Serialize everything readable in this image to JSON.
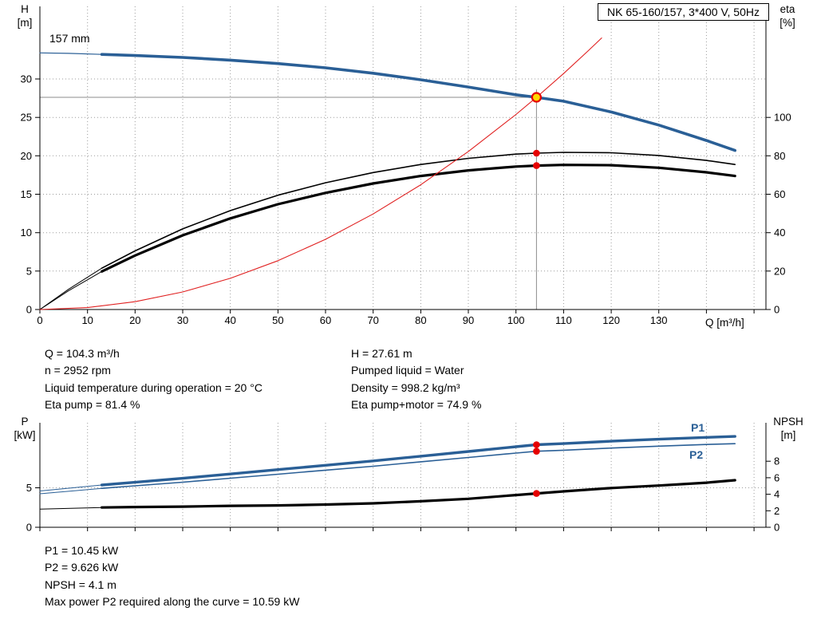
{
  "header": {
    "pump_model": "NK 65-160/157, 3*400 V, 50Hz"
  },
  "colors": {
    "curve_blue": "#2a5f96",
    "curve_black": "#000000",
    "system_red": "#e02020",
    "marker_red": "#e60000",
    "duty_yellow": "#ffd800",
    "crosshair_gray": "#8c8c8c"
  },
  "top_chart": {
    "impeller_label": "157 mm",
    "y_left_title": "H",
    "y_left_unit": "[m]",
    "y_right_title": "eta",
    "y_right_unit": "[%]",
    "x_title": "Q [m³/h]"
  },
  "bottom_chart": {
    "y_left_title": "P",
    "y_left_unit": "[kW]",
    "y_right_title": "NPSH",
    "y_right_unit": "[m]",
    "p1_label": "P1",
    "p2_label": "P2"
  },
  "info": {
    "left_lines": [
      "Q = 104.3 m³/h",
      "n = 2952 rpm",
      "Liquid temperature during operation = 20 °C",
      "Eta pump = 81.4 %"
    ],
    "right_lines": [
      "H = 27.61 m",
      "Pumped liquid = Water",
      "Density = 998.2 kg/m³",
      "Eta pump+motor = 74.9 %"
    ]
  },
  "results": {
    "lines": [
      "P1 = 10.45 kW",
      "P2 = 9.626 kW",
      "NPSH = 4.1 m",
      "Max power P2 required along the curve = 10.59 kW"
    ]
  },
  "chart_data": [
    {
      "id": "hq-eta-chart",
      "type": "line",
      "title": "NK 65-160/157, 3*400 V, 50Hz",
      "xlabel": "Q [m³/h]",
      "ylabel_left": "H [m]",
      "ylabel_right": "eta [%]",
      "x_range": [
        0,
        152.5
      ],
      "x_tick_labels": [
        0,
        10,
        20,
        30,
        40,
        50,
        60,
        70,
        80,
        90,
        100,
        110,
        120,
        130
      ],
      "x_grid": [
        10,
        20,
        30,
        40,
        50,
        60,
        70,
        80,
        90,
        100,
        110,
        120,
        130,
        140,
        150
      ],
      "y_left": {
        "axis": "H",
        "range": [
          0,
          39.4
        ],
        "ticks": [
          0,
          5,
          10,
          15,
          20,
          25,
          30
        ]
      },
      "y_right": {
        "axis": "eta",
        "range": [
          0,
          157
        ],
        "ticks": [
          0,
          20,
          40,
          60,
          80,
          100
        ]
      },
      "y_grid": [
        {
          "axis": "H",
          "v": 5
        },
        {
          "axis": "H",
          "v": 10
        },
        {
          "axis": "H",
          "v": 15
        },
        {
          "axis": "H",
          "v": 20
        },
        {
          "axis": "H",
          "v": 25
        },
        {
          "axis": "H",
          "v": 30
        }
      ],
      "series": [
        {
          "name": "eta-pump-lead",
          "axis": "eta",
          "color": "#000000",
          "width": 1,
          "x": [
            0,
            6,
            13
          ],
          "y": [
            0,
            10.5,
            21.5
          ]
        },
        {
          "name": "eta-pump-curve",
          "axis": "eta",
          "color": "#000000",
          "width": 1.6,
          "x": [
            13,
            20,
            30,
            40,
            50,
            60,
            70,
            80,
            90,
            100,
            104.3,
            110,
            120,
            130,
            140,
            146
          ],
          "y": [
            21.5,
            30.5,
            42,
            51.5,
            59.5,
            66,
            71.3,
            75.5,
            78.7,
            80.9,
            81.4,
            81.8,
            81.6,
            80.2,
            77.6,
            75.5
          ]
        },
        {
          "name": "eta-pump-motor-lead",
          "axis": "eta",
          "color": "#000000",
          "width": 1,
          "x": [
            0,
            6,
            13
          ],
          "y": [
            0,
            9.7,
            19.8
          ]
        },
        {
          "name": "eta-pump-motor-curve",
          "axis": "eta",
          "color": "#000000",
          "width": 3.2,
          "x": [
            13,
            20,
            30,
            40,
            50,
            60,
            70,
            80,
            90,
            100,
            104.3,
            110,
            120,
            130,
            140,
            146
          ],
          "y": [
            19.8,
            28.1,
            38.6,
            47.4,
            54.8,
            60.7,
            65.6,
            69.5,
            72.4,
            74.4,
            74.9,
            75.3,
            75.1,
            73.8,
            71.4,
            69.5
          ]
        },
        {
          "name": "pump-head-lead",
          "axis": "H",
          "color": "#2a5f96",
          "width": 1.2,
          "x": [
            0,
            6,
            13
          ],
          "y": [
            33.4,
            33.33,
            33.2
          ]
        },
        {
          "name": "pump-head-curve-157mm",
          "axis": "H",
          "color": "#2a5f96",
          "width": 3.6,
          "x": [
            13,
            20,
            30,
            40,
            50,
            60,
            70,
            80,
            90,
            100,
            104.3,
            110,
            120,
            130,
            140,
            146
          ],
          "y": [
            33.2,
            33.05,
            32.8,
            32.45,
            32.0,
            31.45,
            30.75,
            29.9,
            28.95,
            27.95,
            27.61,
            27.1,
            25.7,
            24.0,
            22.0,
            20.7
          ]
        },
        {
          "name": "system-curve",
          "axis": "H",
          "color": "#e02020",
          "width": 1.1,
          "x": [
            0,
            10,
            20,
            30,
            40,
            50,
            60,
            70,
            80,
            90,
            100,
            104.3,
            110,
            115,
            118
          ],
          "y": [
            0,
            0.25,
            1.02,
            2.28,
            4.06,
            6.35,
            9.14,
            12.44,
            16.24,
            20.56,
            25.38,
            27.61,
            30.71,
            33.57,
            35.34
          ]
        }
      ],
      "crosshair": {
        "q": 104.3,
        "v": 27.61,
        "axis": "H"
      },
      "markers": [
        {
          "name": "eta-pump-point",
          "q": 104.3,
          "v": 81.4,
          "axis": "eta",
          "style": "red-dot"
        },
        {
          "name": "eta-pump-motor-point",
          "q": 104.3,
          "v": 74.9,
          "axis": "eta",
          "style": "red-dot"
        },
        {
          "name": "duty-point",
          "q": 104.3,
          "v": 27.61,
          "axis": "H",
          "style": "duty"
        }
      ]
    },
    {
      "id": "power-npsh-chart",
      "type": "line",
      "xlabel": "Q [m³/h]",
      "ylabel_left": "P [kW]",
      "ylabel_right": "NPSH [m]",
      "x_range": [
        0,
        152.5
      ],
      "x_tick_labels": [],
      "x_grid": [
        10,
        20,
        30,
        40,
        50,
        60,
        70,
        80,
        90,
        100,
        110,
        120,
        130,
        140,
        150
      ],
      "y_left": {
        "axis": "P",
        "range": [
          0,
          13.2
        ],
        "ticks": [
          0,
          5
        ]
      },
      "y_right": {
        "axis": "NPSH",
        "range": [
          0,
          12.6
        ],
        "ticks": [
          0,
          2,
          4,
          6,
          8
        ]
      },
      "y_grid": [
        {
          "axis": "P",
          "v": 5
        }
      ],
      "series": [
        {
          "name": "p1-lead",
          "axis": "P",
          "color": "#2a5f96",
          "width": 1,
          "x": [
            0,
            13
          ],
          "y": [
            4.6,
            5.35
          ]
        },
        {
          "name": "p1-curve",
          "axis": "P",
          "color": "#2a5f96",
          "width": 3.4,
          "x": [
            13,
            20,
            30,
            40,
            50,
            60,
            70,
            80,
            90,
            100,
            104.3,
            110,
            120,
            130,
            140,
            146
          ],
          "y": [
            5.35,
            5.7,
            6.2,
            6.75,
            7.3,
            7.85,
            8.4,
            9.0,
            9.6,
            10.2,
            10.45,
            10.6,
            10.9,
            11.15,
            11.38,
            11.5
          ]
        },
        {
          "name": "p2-lead",
          "axis": "P",
          "color": "#2a5f96",
          "width": 1,
          "x": [
            0,
            13
          ],
          "y": [
            4.24,
            4.93
          ]
        },
        {
          "name": "p2-curve",
          "axis": "P",
          "color": "#2a5f96",
          "width": 1.6,
          "x": [
            13,
            20,
            30,
            40,
            50,
            60,
            70,
            80,
            90,
            100,
            104.3,
            110,
            120,
            130,
            140,
            146
          ],
          "y": [
            4.93,
            5.25,
            5.71,
            6.21,
            6.72,
            7.23,
            7.73,
            8.29,
            8.84,
            9.39,
            9.626,
            9.76,
            10.03,
            10.27,
            10.48,
            10.59
          ]
        },
        {
          "name": "npsh-lead",
          "axis": "NPSH",
          "color": "#000000",
          "width": 1,
          "x": [
            0,
            13
          ],
          "y": [
            2.2,
            2.4
          ]
        },
        {
          "name": "npsh-curve",
          "axis": "NPSH",
          "color": "#000000",
          "width": 3.2,
          "x": [
            13,
            20,
            30,
            40,
            50,
            60,
            70,
            80,
            90,
            100,
            104.3,
            110,
            120,
            130,
            140,
            146
          ],
          "y": [
            2.4,
            2.45,
            2.5,
            2.6,
            2.65,
            2.75,
            2.9,
            3.15,
            3.45,
            3.9,
            4.1,
            4.35,
            4.75,
            5.05,
            5.4,
            5.7
          ]
        }
      ],
      "markers": [
        {
          "name": "p1-point",
          "q": 104.3,
          "v": 10.45,
          "axis": "P",
          "style": "red-dot"
        },
        {
          "name": "p2-point",
          "q": 104.3,
          "v": 9.626,
          "axis": "P",
          "style": "red-dot"
        },
        {
          "name": "npsh-point",
          "q": 104.3,
          "v": 4.1,
          "axis": "NPSH",
          "style": "red-dot"
        }
      ]
    }
  ]
}
